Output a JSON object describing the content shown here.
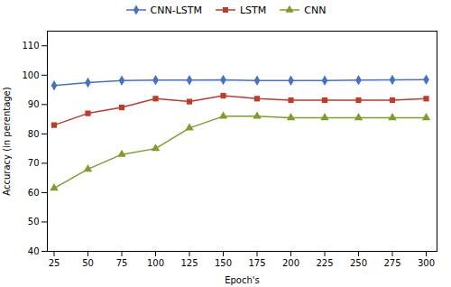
{
  "chart_data": {
    "type": "line",
    "x": [
      25,
      50,
      75,
      100,
      125,
      150,
      175,
      200,
      225,
      250,
      275,
      300
    ],
    "series": [
      {
        "name": "CNN-LSTM",
        "color": "#4472C4",
        "marker": "diamond",
        "values": [
          96.5,
          97.5,
          98.2,
          98.3,
          98.3,
          98.4,
          98.2,
          98.2,
          98.2,
          98.3,
          98.4,
          98.5
        ]
      },
      {
        "name": "LSTM",
        "color": "#C0392B",
        "marker": "square",
        "values": [
          83.0,
          87.0,
          89.0,
          92.0,
          91.0,
          93.0,
          92.0,
          91.5,
          91.5,
          91.5,
          91.5,
          92.0
        ]
      },
      {
        "name": "CNN",
        "color": "#7D9E2A",
        "marker": "triangle",
        "values": [
          61.5,
          68.0,
          73.0,
          75.0,
          82.0,
          86.0,
          86.0,
          85.5,
          85.5,
          85.5,
          85.5,
          85.5
        ]
      }
    ],
    "xlabel": "Epoch's",
    "ylabel": "Accuracy (in perentage)",
    "xlim": [
      20,
      308
    ],
    "ylim": [
      40,
      115
    ],
    "xticks": [
      25,
      50,
      75,
      100,
      125,
      150,
      175,
      200,
      225,
      250,
      275,
      300
    ],
    "yticks": [
      40,
      50,
      60,
      70,
      80,
      90,
      100,
      110
    ],
    "grid": false,
    "legend": "top"
  }
}
